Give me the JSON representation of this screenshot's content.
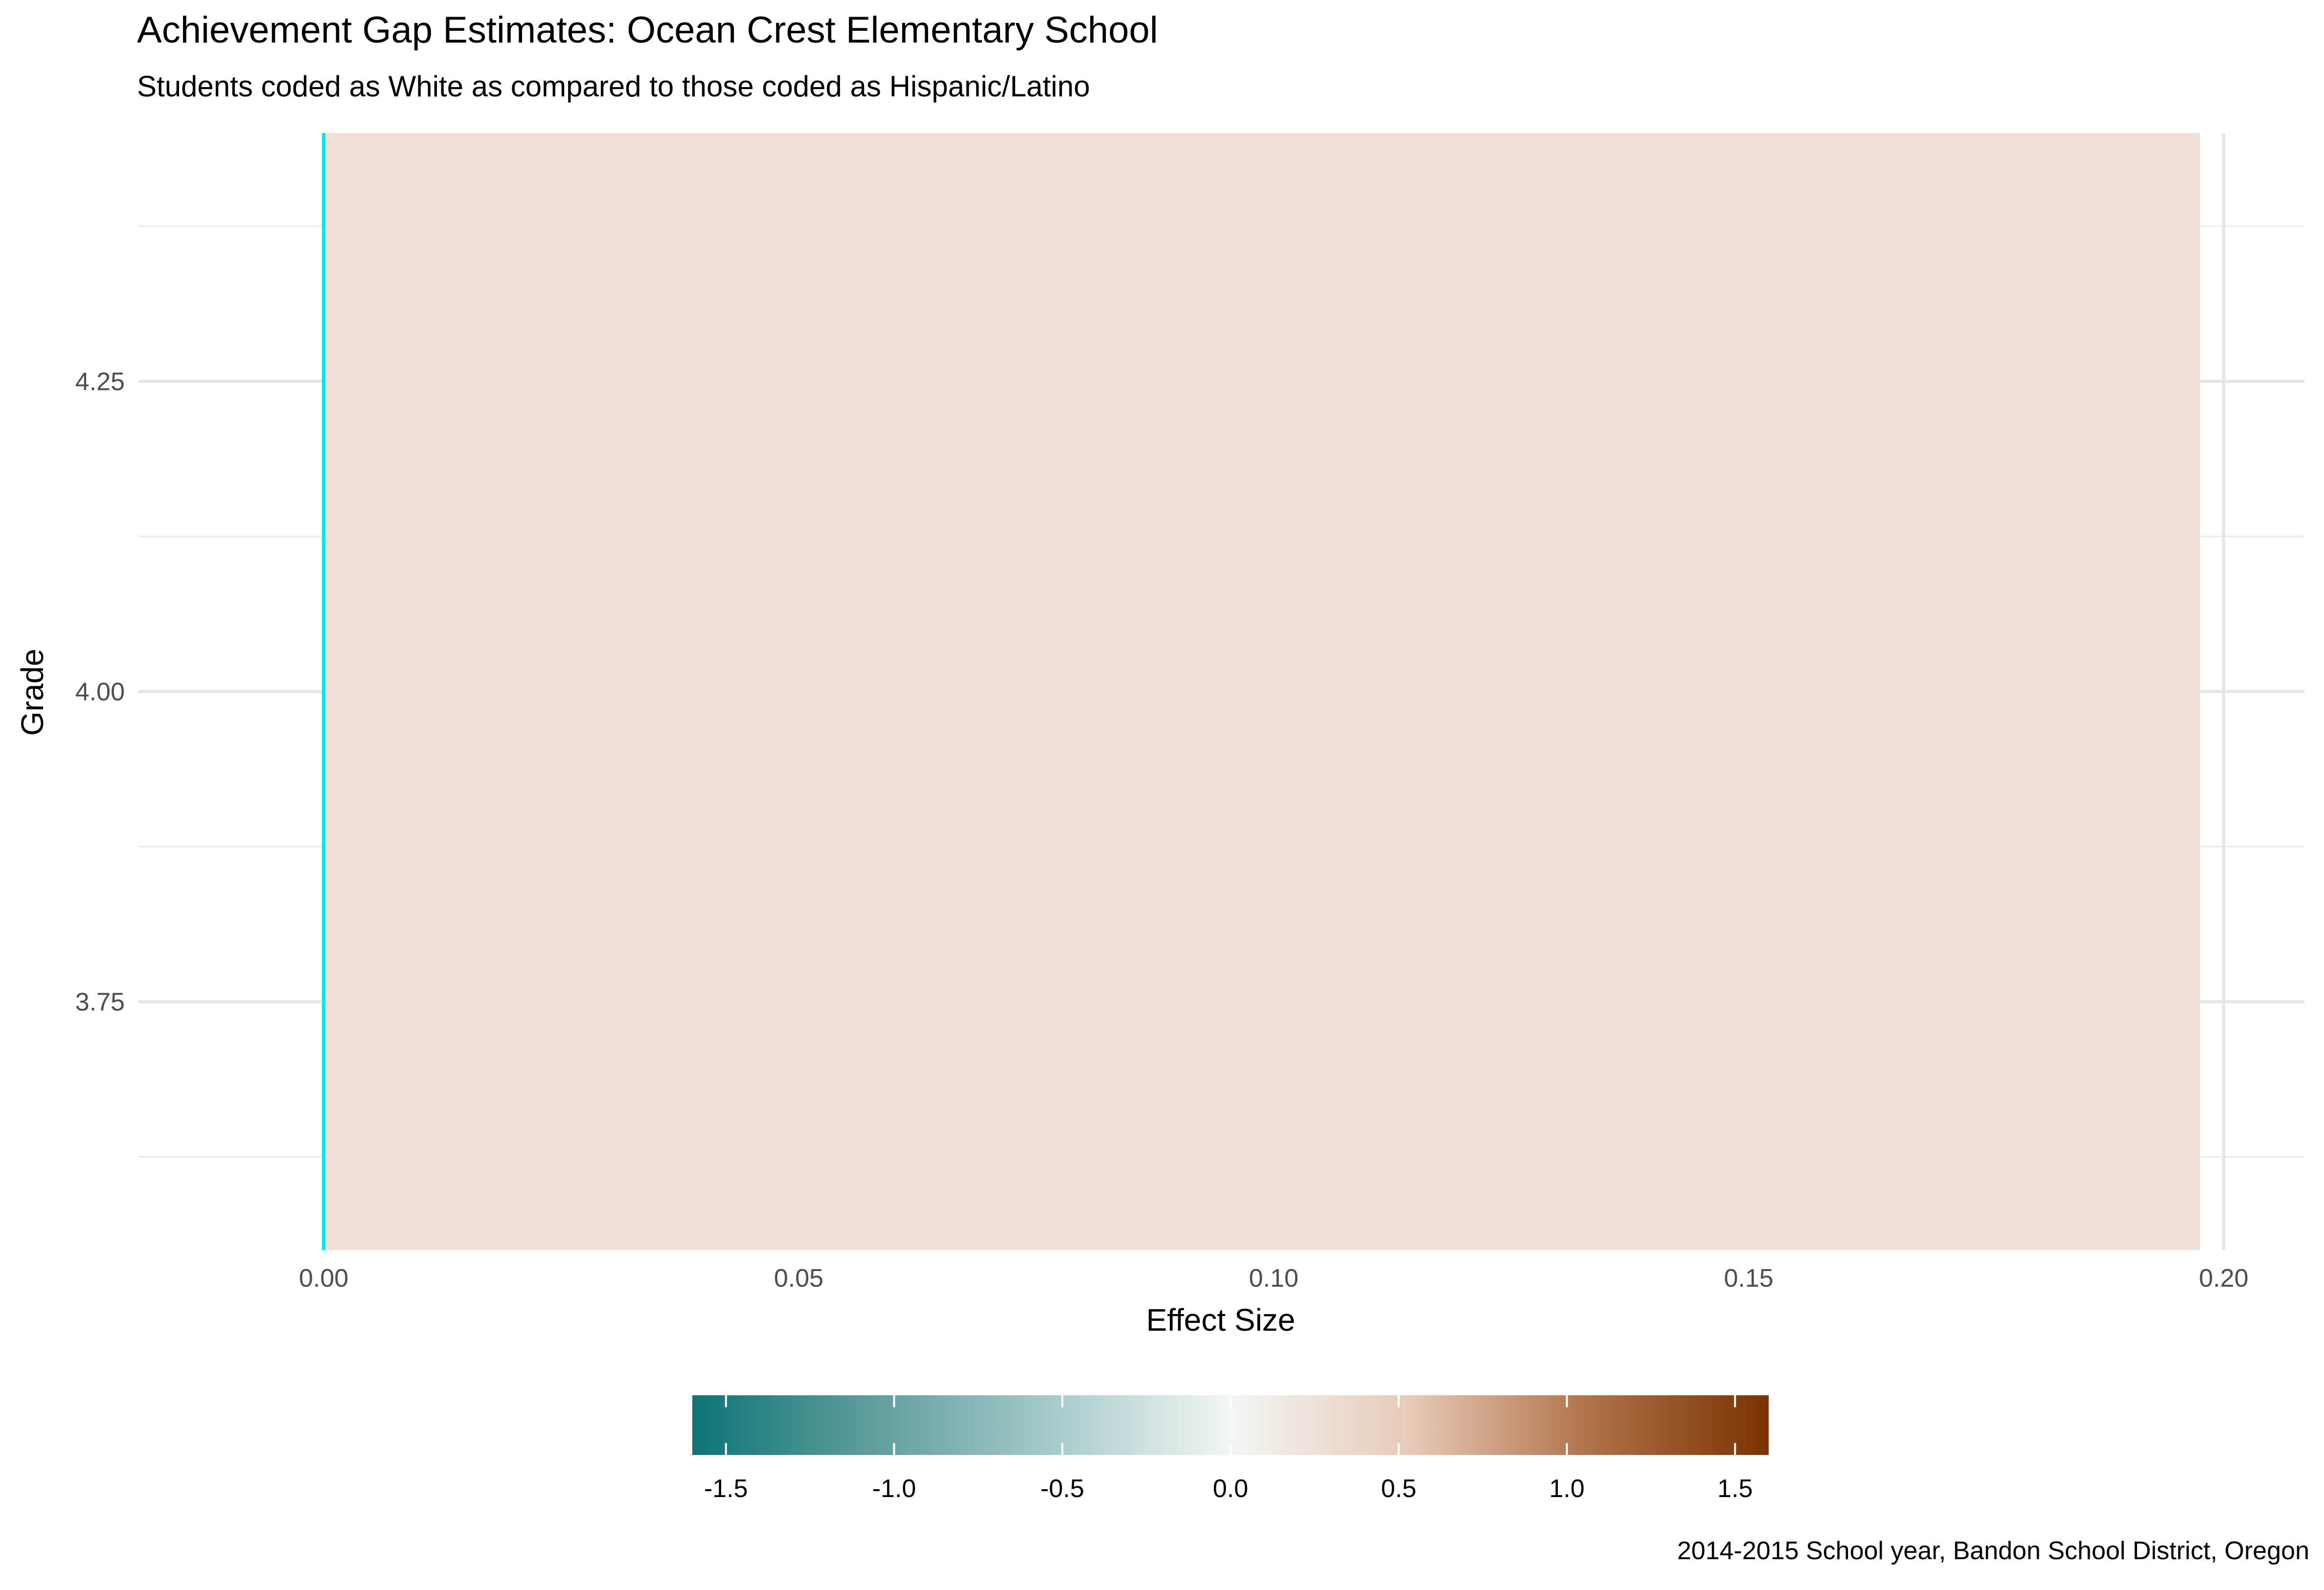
{
  "chart_data": {
    "type": "bar",
    "orientation": "horizontal",
    "title": "Achievement Gap Estimates: Ocean Crest Elementary School",
    "subtitle": "Students coded as White as compared to those coded as Hispanic/Latino",
    "caption": "2014-2015 School year, Bandon School District, Oregon",
    "xlabel": "Effect Size",
    "ylabel": "Grade",
    "xlim": [
      -0.0195,
      0.2085
    ],
    "ylim": [
      3.55,
      4.45
    ],
    "x_ticks": [
      0.0,
      0.05,
      0.1,
      0.15,
      0.2
    ],
    "x_tick_labels": [
      "0.00",
      "0.05",
      "0.10",
      "0.15",
      "0.20"
    ],
    "y_ticks": [
      3.75,
      4.0,
      4.25
    ],
    "y_tick_labels": [
      "3.75",
      "4.00",
      "4.25"
    ],
    "bars": [
      {
        "grade": 4,
        "y_min": 3.55,
        "y_max": 4.45,
        "effect_size": 0.1975,
        "fill": "#F0DFD6"
      }
    ],
    "reference_line": {
      "x": 0,
      "color": "#00E5EE"
    },
    "legend": {
      "type": "colorbar",
      "position": "bottom",
      "range": [
        -1.6,
        1.6
      ],
      "ticks": [
        -1.5,
        -1.0,
        -0.5,
        0.0,
        0.5,
        1.0,
        1.5
      ],
      "tick_labels": [
        "-1.5",
        "-1.0",
        "-0.5",
        "0.0",
        "0.5",
        "1.0",
        "1.5"
      ],
      "colors": [
        "#0D7475",
        "#5F9E9D",
        "#A6CACA",
        "#F3F6F5",
        "#E7CAB7",
        "#B07249",
        "#7A3300"
      ]
    },
    "grid": true
  }
}
